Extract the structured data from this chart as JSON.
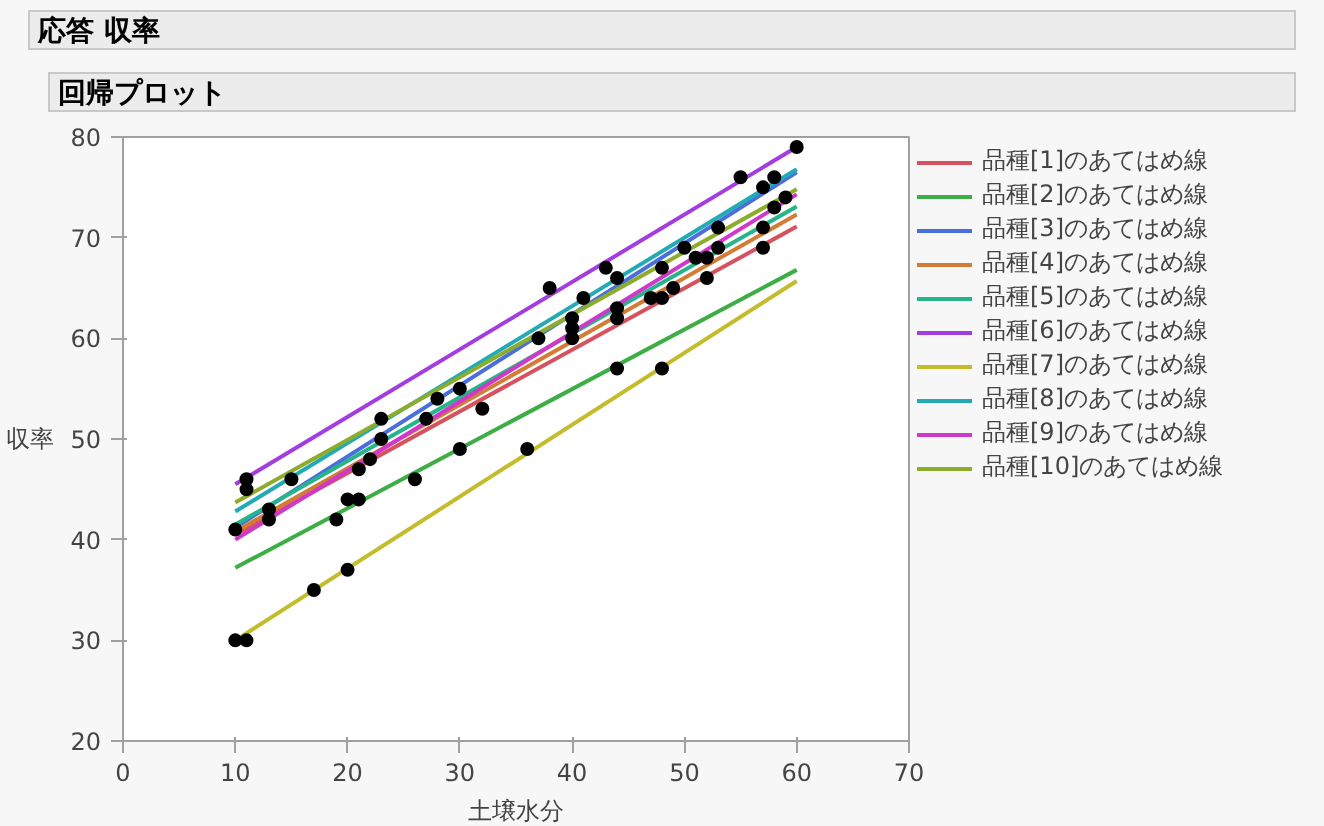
{
  "chart_data": {
    "type": "line",
    "title": "応答 収率",
    "subtitle": "回帰プロット",
    "xlabel": "土壌水分",
    "ylabel": "収率",
    "xlim": [
      0,
      70
    ],
    "xticks": [
      0,
      10,
      20,
      30,
      40,
      50,
      60,
      70
    ],
    "ylim": [
      20,
      80
    ],
    "yticks": [
      20,
      30,
      40,
      50,
      60,
      70,
      80
    ],
    "grid": false,
    "legend": "top right",
    "line_style": "solid",
    "series": [
      {
        "type": "scatter",
        "marker": "circle",
        "color": "#000000",
        "x": [
          10,
          11,
          10,
          11,
          11,
          13,
          13,
          15,
          17,
          19,
          20,
          21,
          20,
          21,
          22,
          23,
          23,
          26,
          27,
          28,
          30,
          30,
          32,
          36,
          37,
          38,
          40,
          40,
          40,
          41,
          43,
          44,
          44,
          44,
          44,
          47,
          48,
          48,
          48,
          49,
          50,
          51,
          52,
          52,
          53,
          53,
          55,
          57,
          57,
          57,
          58,
          58,
          59,
          60
        ],
        "values": [
          30,
          30,
          41,
          46,
          45,
          43,
          42,
          46,
          35,
          42,
          44,
          44,
          37,
          47,
          48,
          52,
          50,
          46,
          52,
          54,
          55,
          49,
          53,
          49,
          60,
          65,
          62,
          61,
          60,
          64,
          67,
          66,
          63,
          62,
          57,
          64,
          64,
          67,
          57,
          65,
          69,
          68,
          68,
          66,
          71,
          69,
          76,
          75,
          71,
          69,
          76,
          73,
          74,
          79
        ]
      },
      {
        "name": "品種[1]のあてはめ線",
        "color": "#d6525e",
        "x": [
          10,
          60
        ],
        "values": [
          40.5,
          71.1
        ]
      },
      {
        "name": "品種[2]のあてはめ線",
        "color": "#3cae45",
        "x": [
          10,
          60
        ],
        "values": [
          37.2,
          66.8
        ]
      },
      {
        "name": "品種[3]のあてはめ線",
        "color": "#4a6fdc",
        "x": [
          10,
          60
        ],
        "values": [
          41.2,
          76.5
        ]
      },
      {
        "name": "品種[4]のあてはめ線",
        "color": "#d47c35",
        "x": [
          10,
          60
        ],
        "values": [
          40.8,
          72.3
        ]
      },
      {
        "name": "品種[5]のあてはめ線",
        "color": "#26b48a",
        "x": [
          10,
          60
        ],
        "values": [
          41.5,
          73.1
        ]
      },
      {
        "name": "品種[6]のあてはめ線",
        "color": "#a23de0",
        "x": [
          10,
          60
        ],
        "values": [
          45.5,
          79
        ]
      },
      {
        "name": "品種[7]のあてはめ線",
        "color": "#c4bc2d",
        "x": [
          10,
          60
        ],
        "values": [
          30,
          65.7
        ]
      },
      {
        "name": "品種[8]のあてはめ線",
        "color": "#23aab4",
        "x": [
          10,
          60
        ],
        "values": [
          42.8,
          76.8
        ]
      },
      {
        "name": "品種[9]のあてはめ線",
        "color": "#cf38c8",
        "x": [
          10,
          60
        ],
        "values": [
          40,
          74.3
        ]
      },
      {
        "name": "品種[10]のあてはめ線",
        "color": "#8cac2c",
        "x": [
          10,
          60
        ],
        "values": [
          43.7,
          74.8
        ]
      }
    ]
  }
}
